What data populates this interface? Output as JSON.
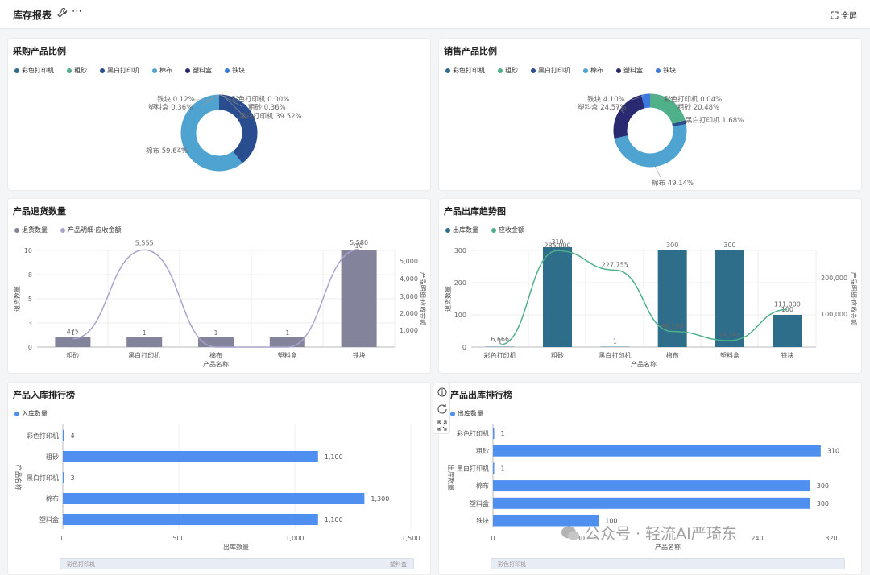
{
  "header": {
    "title": "库存报表",
    "fullscreen": "全屏",
    "more": "⋯"
  },
  "colors": {
    "teal": "#2f6e8a",
    "green": "#4fb08a",
    "navy": "#2a2a72",
    "lightblue": "#4fa3d1",
    "blue": "#3d7ae0",
    "bar": "#4f8ff0",
    "gray": "#83839c",
    "lavender": "#a9a4cc"
  },
  "purchase_pie": {
    "title": "采购产品比例",
    "legend": [
      "彩色打印机",
      "粗砂",
      "黑白打印机",
      "棉布",
      "塑料盒",
      "铁块"
    ],
    "labels": [
      "彩色打印机 0.00%",
      "粗砂 0.36%",
      "黑白打印机 39.52%",
      "棉布 59.64%",
      "塑料盒 0.36%",
      "铁块 0.12%"
    ]
  },
  "sales_pie": {
    "title": "销售产品比例",
    "legend": [
      "彩色打印机",
      "粗砂",
      "黑白打印机",
      "棉布",
      "塑料盒",
      "铁块"
    ],
    "labels": [
      "彩色打印机 0.04%",
      "粗砂 20.48%",
      "黑白打印机 1.68%",
      "棉布 49.14%",
      "塑料盒 24.57%",
      "铁块 4.10%"
    ]
  },
  "returns": {
    "title": "产品退货数量",
    "legend": [
      "退货数量",
      "产品明细·应收金额"
    ],
    "ylabel": "退货数量",
    "y2label": "产品明细·应收金额",
    "xlabel": "产品名称"
  },
  "outbound_trend": {
    "title": "产品出库趋势图",
    "legend": [
      "出库数量",
      "应收金额"
    ],
    "ylabel": "退货数量",
    "y2label": "产品明细·应收金额",
    "xlabel": "产品名称"
  },
  "inbound_rank": {
    "title": "产品入库排行榜",
    "legend": "入库数量",
    "xlabel": "出库数量",
    "ylabel": "产品名称",
    "scroll_left": "彩色打印机",
    "scroll_right": "塑料盒"
  },
  "outbound_rank": {
    "title": "产品出库排行榜",
    "legend": "出库数量",
    "xlabel": "产品名称",
    "ylabel": "出库数量",
    "scroll_left": "彩色打印机"
  },
  "watermark": "公众号 · 轻流AI严琦东",
  "chart_data": [
    {
      "type": "pie",
      "title": "采购产品比例",
      "categories": [
        "彩色打印机",
        "粗砂",
        "黑白打印机",
        "棉布",
        "塑料盒",
        "铁块"
      ],
      "values": [
        0.0,
        0.36,
        39.52,
        59.64,
        0.36,
        0.12
      ]
    },
    {
      "type": "pie",
      "title": "销售产品比例",
      "categories": [
        "彩色打印机",
        "粗砂",
        "黑白打印机",
        "棉布",
        "塑料盒",
        "铁块"
      ],
      "values": [
        0.04,
        20.48,
        1.68,
        49.14,
        24.57,
        4.1
      ]
    },
    {
      "type": "bar",
      "title": "产品退货数量",
      "categories": [
        "粗砂",
        "黑白打印机",
        "棉布",
        "塑料盒",
        "铁块"
      ],
      "series": [
        {
          "name": "退货数量",
          "values": [
            1,
            1,
            1,
            1,
            10
          ]
        },
        {
          "name": "产品明细·应收金额",
          "values": [
            475,
            5555,
            0,
            0,
            5580
          ]
        }
      ],
      "ylim": [
        0,
        10
      ],
      "y2ticks": [
        "1,000",
        "2,000",
        "3,000",
        "4,000",
        "5,000"
      ],
      "yticks": [
        "0",
        "3",
        "5",
        "8",
        "10"
      ],
      "bar_labels": [
        "1",
        "1",
        "1",
        "1",
        "10"
      ],
      "line_labels": [
        "475",
        "5,555",
        "",
        "",
        "5,580"
      ]
    },
    {
      "type": "bar",
      "title": "产品出库趋势图",
      "categories": [
        "彩色打印机",
        "粗砂",
        "黑白打印机",
        "棉布",
        "塑料盒",
        "铁块"
      ],
      "series": [
        {
          "name": "出库数量",
          "values": [
            1,
            310,
            1,
            300,
            300,
            100
          ]
        },
        {
          "name": "应收金额",
          "values": [
            6666,
            285000,
            227755,
            46100,
            19265,
            111000
          ]
        }
      ],
      "ylim": [
        0,
        300
      ],
      "yticks": [
        "0",
        "100",
        "200",
        "300"
      ],
      "y2ticks": [
        "100,000",
        "200,000"
      ],
      "bar_labels": [
        "1",
        "310",
        "1",
        "300",
        "300",
        "100"
      ],
      "line_labels": [
        "6,666",
        "285,000",
        "227,755",
        "46,100",
        "19,265",
        "111,000"
      ]
    },
    {
      "type": "bar",
      "title": "产品入库排行榜",
      "orientation": "horizontal",
      "categories": [
        "彩色打印机",
        "粗砂",
        "黑白打印机",
        "棉布",
        "塑料盒"
      ],
      "values": [
        4,
        1100,
        3,
        1300,
        1100
      ],
      "labels": [
        "4",
        "1,100",
        "3",
        "1,300",
        "1,100"
      ],
      "xlim": [
        0,
        1500
      ],
      "xticks": [
        "0",
        "500",
        "1,000",
        "1,500"
      ]
    },
    {
      "type": "bar",
      "title": "产品出库排行榜",
      "orientation": "horizontal",
      "categories": [
        "彩色打印机",
        "粗砂",
        "黑白打印机",
        "棉布",
        "塑料盒",
        "铁块"
      ],
      "values": [
        1,
        310,
        1,
        300,
        300,
        100
      ],
      "labels": [
        "1",
        "310",
        "1",
        "300",
        "300",
        "100"
      ],
      "xlim": [
        0,
        320
      ],
      "xticks": [
        "0",
        "30",
        "240",
        "320"
      ]
    }
  ]
}
